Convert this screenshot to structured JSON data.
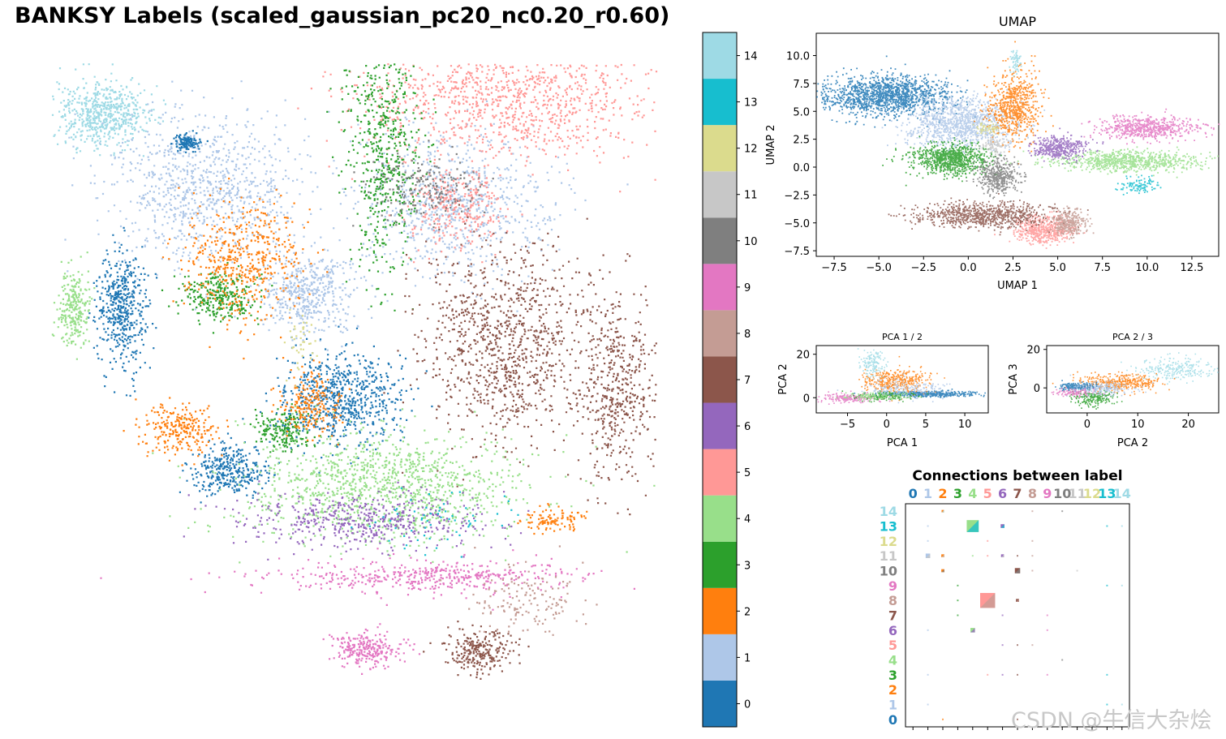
{
  "title": "BANKSY Labels (scaled_gaussian_pc20_nc0.20_r0.60)",
  "watermark": "CSDN @牛信大杂烩",
  "palette": [
    "#1f77b4",
    "#aec7e8",
    "#ff7f0e",
    "#2ca02c",
    "#98df8a",
    "#ff9896",
    "#9467bd",
    "#8c564b",
    "#c49c94",
    "#e377c2",
    "#7f7f7f",
    "#c7c7c7",
    "#dbdb8d",
    "#17becf",
    "#9edae5"
  ],
  "chart_data": [
    {
      "type": "scatter",
      "title": "BANKSY Labels (scaled_gaussian_pc20_nc0.20_r0.60)",
      "legend": "colorbar-right",
      "colorbar_ticks": [
        "0",
        "1",
        "2",
        "3",
        "4",
        "5",
        "6",
        "7",
        "8",
        "9",
        "10",
        "11",
        "12",
        "13",
        "14"
      ],
      "axes_visible": false
    },
    {
      "type": "scatter",
      "title": "UMAP",
      "xlabel": "UMAP 1",
      "ylabel": "UMAP 2",
      "xlim": [
        -8.5,
        14
      ],
      "ylim": [
        -8,
        12
      ],
      "xticks": [
        -7.5,
        -5.0,
        -2.5,
        0.0,
        2.5,
        5.0,
        7.5,
        10.0,
        12.5
      ],
      "yticks": [
        -7.5,
        -5.0,
        -2.5,
        0.0,
        2.5,
        5.0,
        7.5,
        10.0
      ],
      "xtick_labels": [
        "−7.5",
        "−5.0",
        "−2.5",
        "0.0",
        "2.5",
        "5.0",
        "7.5",
        "10.0",
        "12.5"
      ],
      "ytick_labels": [
        "−7.5",
        "−5.0",
        "−2.5",
        "0.0",
        "2.5",
        "5.0",
        "7.5",
        "10.0"
      ],
      "clusters": [
        {
          "label": 0,
          "cx": -4.5,
          "cy": 6.5
        },
        {
          "label": 1,
          "cx": -0.5,
          "cy": 4.0
        },
        {
          "label": 2,
          "cx": 2.5,
          "cy": 5.5
        },
        {
          "label": 3,
          "cx": -1.0,
          "cy": 0.8
        },
        {
          "label": 4,
          "cx": 9.0,
          "cy": 0.6
        },
        {
          "label": 5,
          "cx": 4.2,
          "cy": -5.6
        },
        {
          "label": 6,
          "cx": 5.0,
          "cy": 1.8
        },
        {
          "label": 7,
          "cx": 0.8,
          "cy": -4.2
        },
        {
          "label": 8,
          "cx": 5.6,
          "cy": -5.0
        },
        {
          "label": 9,
          "cx": 10.0,
          "cy": 3.6
        },
        {
          "label": 10,
          "cx": 1.6,
          "cy": -0.8
        },
        {
          "label": 11,
          "cx": 1.4,
          "cy": 2.0
        },
        {
          "label": 12,
          "cx": 1.0,
          "cy": 3.5
        },
        {
          "label": 13,
          "cx": 9.5,
          "cy": -1.5
        },
        {
          "label": 14,
          "cx": 2.6,
          "cy": 9.5
        }
      ]
    },
    {
      "type": "scatter",
      "title": "PCA 1 / 2",
      "xlabel": "PCA 1",
      "ylabel": "PCA 2",
      "xlim": [
        -9,
        13
      ],
      "ylim": [
        -7,
        24
      ],
      "xticks": [
        -5,
        0,
        5,
        10
      ],
      "yticks": [
        0,
        20
      ],
      "xtick_labels": [
        "−5",
        "0",
        "5",
        "10"
      ],
      "ytick_labels": [
        "0",
        "20"
      ]
    },
    {
      "type": "scatter",
      "title": "PCA 2 / 3",
      "xlabel": "PCA 2",
      "ylabel": "PCA 3",
      "xlim": [
        -8,
        26
      ],
      "ylim": [
        -13,
        22
      ],
      "xticks": [
        0,
        10,
        20
      ],
      "yticks": [
        0,
        20
      ],
      "xtick_labels": [
        "0",
        "10",
        "20"
      ],
      "ytick_labels": [
        "0",
        "20"
      ]
    },
    {
      "type": "heatmap",
      "title": "Connections between label",
      "row_labels": [
        "0",
        "1",
        "2",
        "3",
        "4",
        "5",
        "6",
        "7",
        "8",
        "9",
        "10",
        "11",
        "12",
        "13",
        "14"
      ],
      "col_labels": [
        "0",
        "1",
        "2",
        "3",
        "4",
        "5",
        "6",
        "7",
        "8",
        "9",
        "10",
        "11",
        "12",
        "13",
        "14"
      ],
      "strong_connections": [
        {
          "row": 13,
          "col": 4,
          "size": 0.8
        },
        {
          "row": 8,
          "col": 5,
          "size": 1.0
        },
        {
          "row": 13,
          "col": 6,
          "size": 0.25
        },
        {
          "row": 10,
          "col": 7,
          "size": 0.35
        },
        {
          "row": 8,
          "col": 7,
          "size": 0.2
        },
        {
          "row": 11,
          "col": 1,
          "size": 0.3
        },
        {
          "row": 6,
          "col": 4,
          "size": 0.3
        },
        {
          "row": 11,
          "col": 6,
          "size": 0.2
        },
        {
          "row": 10,
          "col": 2,
          "size": 0.2
        },
        {
          "row": 11,
          "col": 2,
          "size": 0.2
        },
        {
          "row": 14,
          "col": 2,
          "size": 0.15
        }
      ]
    }
  ]
}
